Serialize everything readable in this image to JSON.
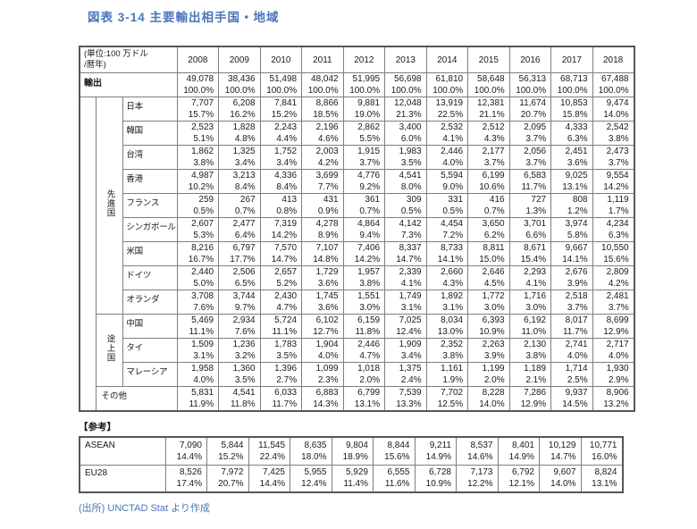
{
  "colors": {
    "accent_blue": "#4a76ba",
    "border_gray": "#7f7f7f"
  },
  "title": "図表 3-14 主要輸出相手国・地域",
  "table": {
    "unit_label": {
      "line1": "(単位:100 万ドル",
      "line2": "/暦年)"
    },
    "years": [
      "2008",
      "2009",
      "2010",
      "2011",
      "2012",
      "2013",
      "2014",
      "2015",
      "2016",
      "2017",
      "2018"
    ],
    "export_row": {
      "label": "輸出",
      "values": [
        "49,078",
        "38,436",
        "51,498",
        "48,042",
        "51,995",
        "56,698",
        "61,810",
        "58,648",
        "56,313",
        "68,713",
        "67,488"
      ],
      "percents": [
        "100.0%",
        "100.0%",
        "100.0%",
        "100.0%",
        "100.0%",
        "100.0%",
        "100.0%",
        "100.0%",
        "100.0%",
        "100.0%",
        "100.0%"
      ]
    },
    "groups": [
      {
        "label": "先進国",
        "rows": [
          {
            "label": "日本",
            "values": [
              "7,707",
              "6,208",
              "7,841",
              "8,866",
              "9,881",
              "12,048",
              "13,919",
              "12,381",
              "11,674",
              "10,853",
              "9,474"
            ],
            "percents": [
              "15.7%",
              "16.2%",
              "15.2%",
              "18.5%",
              "19.0%",
              "21.3%",
              "22.5%",
              "21.1%",
              "20.7%",
              "15.8%",
              "14.0%"
            ]
          },
          {
            "label": "韓国",
            "values": [
              "2,523",
              "1,828",
              "2,243",
              "2,196",
              "2,862",
              "3,400",
              "2,532",
              "2,512",
              "2,095",
              "4,333",
              "2,542"
            ],
            "percents": [
              "5.1%",
              "4.8%",
              "4.4%",
              "4.6%",
              "5.5%",
              "6.0%",
              "4.1%",
              "4.3%",
              "3.7%",
              "6.3%",
              "3.8%"
            ]
          },
          {
            "label": "台湾",
            "values": [
              "1,862",
              "1,325",
              "1,752",
              "2,003",
              "1,915",
              "1,983",
              "2,446",
              "2,177",
              "2,056",
              "2,451",
              "2,473"
            ],
            "percents": [
              "3.8%",
              "3.4%",
              "3.4%",
              "4.2%",
              "3.7%",
              "3.5%",
              "4.0%",
              "3.7%",
              "3.7%",
              "3.6%",
              "3.7%"
            ]
          },
          {
            "label": "香港",
            "values": [
              "4,987",
              "3,213",
              "4,336",
              "3,699",
              "4,776",
              "4,541",
              "5,594",
              "6,199",
              "6,583",
              "9,025",
              "9,554"
            ],
            "percents": [
              "10.2%",
              "8.4%",
              "8.4%",
              "7.7%",
              "9.2%",
              "8.0%",
              "9.0%",
              "10.6%",
              "11.7%",
              "13.1%",
              "14.2%"
            ]
          },
          {
            "label": "フランス",
            "values": [
              "259",
              "267",
              "413",
              "431",
              "361",
              "309",
              "331",
              "416",
              "727",
              "808",
              "1,119"
            ],
            "percents": [
              "0.5%",
              "0.7%",
              "0.8%",
              "0.9%",
              "0.7%",
              "0.5%",
              "0.5%",
              "0.7%",
              "1.3%",
              "1.2%",
              "1.7%"
            ]
          },
          {
            "label": "シンガポール",
            "values": [
              "2,607",
              "2,477",
              "7,319",
              "4,278",
              "4,864",
              "4,142",
              "4,454",
              "3,650",
              "3,701",
              "3,974",
              "4,234"
            ],
            "percents": [
              "5.3%",
              "6.4%",
              "14.2%",
              "8.9%",
              "9.4%",
              "7.3%",
              "7.2%",
              "6.2%",
              "6.6%",
              "5.8%",
              "6.3%"
            ]
          },
          {
            "label": "米国",
            "values": [
              "8,216",
              "6,797",
              "7,570",
              "7,107",
              "7,406",
              "8,337",
              "8,733",
              "8,811",
              "8,671",
              "9,667",
              "10,550"
            ],
            "percents": [
              "16.7%",
              "17.7%",
              "14.7%",
              "14.8%",
              "14.2%",
              "14.7%",
              "14.1%",
              "15.0%",
              "15.4%",
              "14.1%",
              "15.6%"
            ]
          },
          {
            "label": "ドイツ",
            "values": [
              "2,440",
              "2,506",
              "2,657",
              "1,729",
              "1,957",
              "2,339",
              "2,660",
              "2,646",
              "2,293",
              "2,676",
              "2,809"
            ],
            "percents": [
              "5.0%",
              "6.5%",
              "5.2%",
              "3.6%",
              "3.8%",
              "4.1%",
              "4.3%",
              "4.5%",
              "4.1%",
              "3.9%",
              "4.2%"
            ]
          },
          {
            "label": "オランダ",
            "values": [
              "3,708",
              "3,744",
              "2,430",
              "1,745",
              "1,551",
              "1,749",
              "1,892",
              "1,772",
              "1,716",
              "2,518",
              "2,481"
            ],
            "percents": [
              "7.6%",
              "9.7%",
              "4.7%",
              "3.6%",
              "3.0%",
              "3.1%",
              "3.1%",
              "3.0%",
              "3.0%",
              "3.7%",
              "3.7%"
            ]
          }
        ]
      },
      {
        "label": "途上国",
        "rows": [
          {
            "label": "中国",
            "values": [
              "5,469",
              "2,934",
              "5,724",
              "6,102",
              "6,159",
              "7,025",
              "8,034",
              "6,393",
              "6,192",
              "8,017",
              "8,699"
            ],
            "percents": [
              "11.1%",
              "7.6%",
              "11.1%",
              "12.7%",
              "11.8%",
              "12.4%",
              "13.0%",
              "10.9%",
              "11.0%",
              "11.7%",
              "12.9%"
            ]
          },
          {
            "label": "タイ",
            "values": [
              "1,509",
              "1,236",
              "1,783",
              "1,904",
              "2,446",
              "1,909",
              "2,352",
              "2,263",
              "2,130",
              "2,741",
              "2,717"
            ],
            "percents": [
              "3.1%",
              "3.2%",
              "3.5%",
              "4.0%",
              "4.7%",
              "3.4%",
              "3.8%",
              "3.9%",
              "3.8%",
              "4.0%",
              "4.0%"
            ]
          },
          {
            "label": "マレーシア",
            "values": [
              "1,958",
              "1,360",
              "1,396",
              "1,099",
              "1,018",
              "1,375",
              "1,161",
              "1,199",
              "1,189",
              "1,714",
              "1,930"
            ],
            "percents": [
              "4.0%",
              "3.5%",
              "2.7%",
              "2.3%",
              "2.0%",
              "2.4%",
              "1.9%",
              "2.0%",
              "2.1%",
              "2.5%",
              "2.9%"
            ]
          }
        ]
      }
    ],
    "other_row": {
      "label": "その他",
      "values": [
        "5,831",
        "4,541",
        "6,033",
        "6,883",
        "6,799",
        "7,539",
        "7,702",
        "8,228",
        "7,286",
        "9,937",
        "8,906"
      ],
      "percents": [
        "11.9%",
        "11.8%",
        "11.7%",
        "14.3%",
        "13.1%",
        "13.3%",
        "12.5%",
        "14.0%",
        "12.9%",
        "14.5%",
        "13.2%"
      ]
    }
  },
  "reference": {
    "section_label": "【参考】",
    "rows": [
      {
        "label": "ASEAN",
        "values": [
          "7,090",
          "5,844",
          "11,545",
          "8,635",
          "9,804",
          "8,844",
          "9,211",
          "8,537",
          "8,401",
          "10,129",
          "10,771"
        ],
        "percents": [
          "14.4%",
          "15.2%",
          "22.4%",
          "18.0%",
          "18.9%",
          "15.6%",
          "14.9%",
          "14.6%",
          "14.9%",
          "14.7%",
          "16.0%"
        ]
      },
      {
        "label": "EU28",
        "values": [
          "8,526",
          "7,972",
          "7,425",
          "5,955",
          "5,929",
          "6,555",
          "6,728",
          "7,173",
          "6,792",
          "9,607",
          "8,824"
        ],
        "percents": [
          "17.4%",
          "20.7%",
          "14.4%",
          "12.4%",
          "11.4%",
          "11.6%",
          "10.9%",
          "12.2%",
          "12.1%",
          "14.0%",
          "13.1%"
        ]
      }
    ]
  },
  "source_note": "(出所) UNCTAD Stat より作成"
}
